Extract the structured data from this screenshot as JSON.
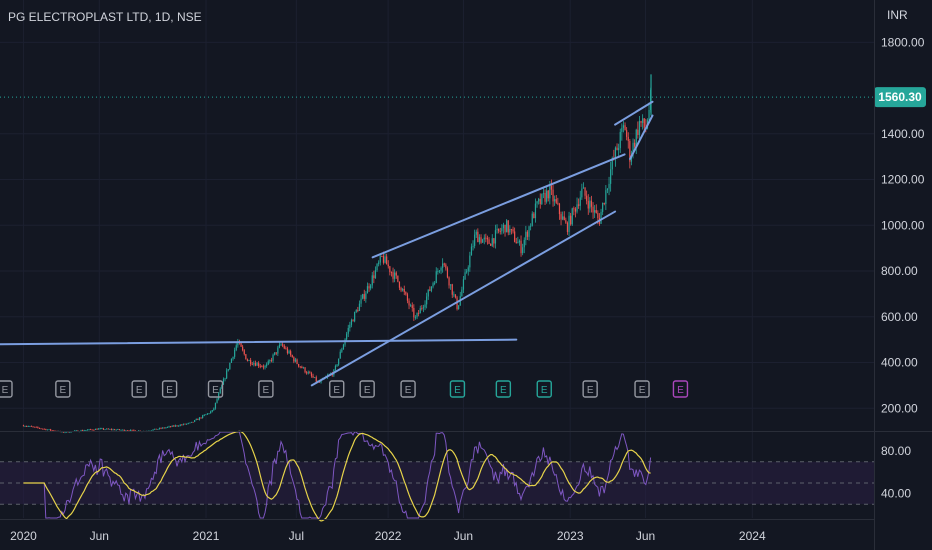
{
  "header": {
    "symbol": "PG ELECTROPLAST LTD, 1D, NSE",
    "currency": "INR"
  },
  "last_price": {
    "label": "1560.30",
    "value": 1560.3
  },
  "colors": {
    "background": "#131722",
    "up": "#26a69a",
    "down": "#ef5350",
    "trendline": "#7b9ee0",
    "rsi_line": "#7e57c2",
    "rsi_ma": "#e6d34a",
    "rsi_band": "#2a1f44",
    "price_badge": "#26a69a",
    "event_earnings": "#9598a1",
    "event_dividend": "#26a69a",
    "event_upcoming": "#ab47bc"
  },
  "chart_data": [
    {
      "type": "candlestick",
      "title": "PG ELECTROPLAST LTD, 1D, NSE",
      "ylabel": "INR",
      "y_ticks": [
        1800,
        1400,
        1200,
        1000,
        800,
        600,
        400,
        200
      ],
      "y_tick_labels": [
        "1800.00",
        "1400.00",
        "1200.00",
        "1000.00",
        "800.00",
        "600.00",
        "400.00",
        "200.00"
      ],
      "ylim": [
        105,
        1985
      ],
      "x_ticks": [
        "2020",
        "Jun",
        "2021",
        "Jul",
        "2022",
        "Jun",
        "2023",
        "Jun",
        "2024"
      ],
      "price_path": [
        {
          "date": "2020-01-01",
          "price": 125
        },
        {
          "date": "2020-03-20",
          "price": 95
        },
        {
          "date": "2020-06-01",
          "price": 110
        },
        {
          "date": "2020-09-01",
          "price": 100
        },
        {
          "date": "2020-12-01",
          "price": 135
        },
        {
          "date": "2021-01-15",
          "price": 190
        },
        {
          "date": "2021-02-10",
          "price": 350
        },
        {
          "date": "2021-03-05",
          "price": 490
        },
        {
          "date": "2021-03-25",
          "price": 410
        },
        {
          "date": "2021-05-01",
          "price": 380
        },
        {
          "date": "2021-06-01",
          "price": 480
        },
        {
          "date": "2021-07-01",
          "price": 400
        },
        {
          "date": "2021-08-15",
          "price": 310
        },
        {
          "date": "2021-09-15",
          "price": 360
        },
        {
          "date": "2021-10-15",
          "price": 560
        },
        {
          "date": "2021-11-15",
          "price": 700
        },
        {
          "date": "2021-12-20",
          "price": 860
        },
        {
          "date": "2022-01-25",
          "price": 740
        },
        {
          "date": "2022-02-25",
          "price": 590
        },
        {
          "date": "2022-03-20",
          "price": 690
        },
        {
          "date": "2022-04-20",
          "price": 850
        },
        {
          "date": "2022-05-20",
          "price": 640
        },
        {
          "date": "2022-06-25",
          "price": 960
        },
        {
          "date": "2022-07-20",
          "price": 920
        },
        {
          "date": "2022-08-25",
          "price": 1000
        },
        {
          "date": "2022-09-25",
          "price": 900
        },
        {
          "date": "2022-10-25",
          "price": 1080
        },
        {
          "date": "2022-11-20",
          "price": 1150
        },
        {
          "date": "2022-12-25",
          "price": 990
        },
        {
          "date": "2023-01-25",
          "price": 1150
        },
        {
          "date": "2023-02-28",
          "price": 1020
        },
        {
          "date": "2023-03-25",
          "price": 1260
        },
        {
          "date": "2023-04-20",
          "price": 1440
        },
        {
          "date": "2023-05-01",
          "price": 1300
        },
        {
          "date": "2023-05-20",
          "price": 1450
        },
        {
          "date": "2023-06-01",
          "price": 1420
        },
        {
          "date": "2023-06-12",
          "price": 1560
        }
      ],
      "trendlines": [
        {
          "name": "horizontal-resistance",
          "points": [
            {
              "date": "2019-11-15",
              "price": 480
            },
            {
              "date": "2022-09-15",
              "price": 500
            }
          ]
        },
        {
          "name": "channel-upper",
          "points": [
            {
              "date": "2021-12-01",
              "price": 860
            },
            {
              "date": "2023-04-20",
              "price": 1310
            }
          ]
        },
        {
          "name": "channel-lower",
          "points": [
            {
              "date": "2021-08-01",
              "price": 300
            },
            {
              "date": "2023-04-01",
              "price": 1060
            }
          ]
        },
        {
          "name": "wedge-upper",
          "points": [
            {
              "date": "2023-04-01",
              "price": 1440
            },
            {
              "date": "2023-06-15",
              "price": 1540
            }
          ]
        },
        {
          "name": "wedge-lower",
          "points": [
            {
              "date": "2023-05-01",
              "price": 1290
            },
            {
              "date": "2023-06-15",
              "price": 1480
            }
          ]
        }
      ],
      "events": [
        {
          "date": "2019-11-25",
          "label": "E",
          "kind": "earnings"
        },
        {
          "date": "2020-03-20",
          "label": "E",
          "kind": "earnings"
        },
        {
          "date": "2020-08-20",
          "label": "E",
          "kind": "earnings"
        },
        {
          "date": "2020-10-20",
          "label": "E",
          "kind": "earnings"
        },
        {
          "date": "2021-01-20",
          "label": "E",
          "kind": "earnings"
        },
        {
          "date": "2021-05-01",
          "label": "E",
          "kind": "earnings"
        },
        {
          "date": "2021-09-20",
          "label": "E",
          "kind": "earnings"
        },
        {
          "date": "2021-11-20",
          "label": "E",
          "kind": "earnings"
        },
        {
          "date": "2022-02-10",
          "label": "E",
          "kind": "earnings"
        },
        {
          "date": "2022-05-20",
          "label": "E",
          "kind": "dividend"
        },
        {
          "date": "2022-08-20",
          "label": "E",
          "kind": "dividend"
        },
        {
          "date": "2022-11-10",
          "label": "E",
          "kind": "dividend"
        },
        {
          "date": "2023-02-10",
          "label": "E",
          "kind": "earnings"
        },
        {
          "date": "2023-05-25",
          "label": "E",
          "kind": "earnings"
        },
        {
          "date": "2023-08-10",
          "label": "E",
          "kind": "upcoming"
        }
      ]
    },
    {
      "type": "line",
      "name": "rsi-pane",
      "y_ticks": [
        80,
        40
      ],
      "y_tick_labels": [
        "80.00",
        "40.00"
      ],
      "ylim": [
        17,
        98
      ],
      "band": [
        30,
        70
      ],
      "midline": 50,
      "last_value": 74
    }
  ]
}
